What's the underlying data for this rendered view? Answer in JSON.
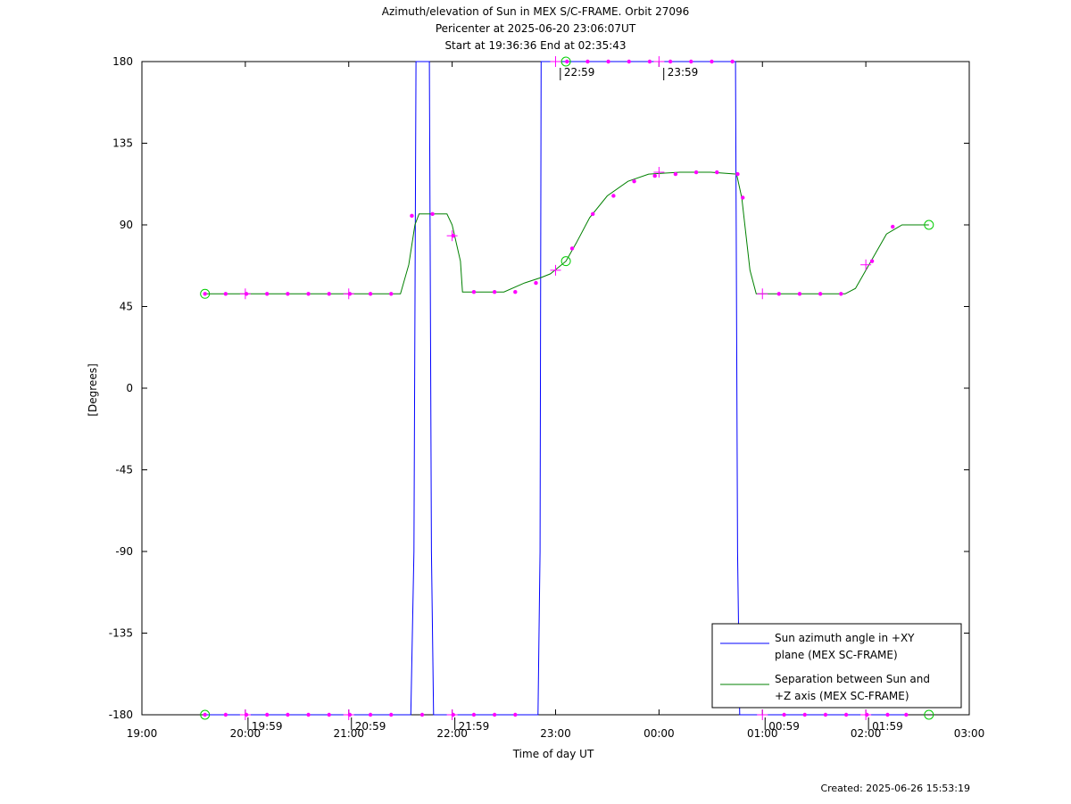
{
  "header": {
    "title": "Azimuth/elevation of Sun in MEX S/C-FRAME.  Orbit 27096",
    "subtitle1": "Pericenter at 2025-06-20 23:06:07UT",
    "subtitle2": "Start at 19:36:36 End at 02:35:43"
  },
  "footer": {
    "created": "Created: 2025-06-26 15:53:19"
  },
  "chart_data": {
    "type": "line",
    "title": "Azimuth/elevation of Sun in MEX S/C-FRAME.  Orbit 27096",
    "xlabel": "Time of day UT",
    "ylabel": "[Degrees]",
    "x_unit": "hours since 19:00 UT",
    "xlim": [
      0,
      8
    ],
    "ylim": [
      -180,
      180
    ],
    "x_ticks": [
      {
        "x": 0,
        "label": "19:00"
      },
      {
        "x": 1,
        "label": "20:00"
      },
      {
        "x": 2,
        "label": "21:00"
      },
      {
        "x": 3,
        "label": "22:00"
      },
      {
        "x": 4,
        "label": "23:00"
      },
      {
        "x": 5,
        "label": "00:00"
      },
      {
        "x": 6,
        "label": "01:00"
      },
      {
        "x": 7,
        "label": "02:00"
      },
      {
        "x": 8,
        "label": "03:00"
      }
    ],
    "y_ticks": [
      {
        "y": 180,
        "label": "180"
      },
      {
        "y": 135,
        "label": "135"
      },
      {
        "y": 90,
        "label": "90"
      },
      {
        "y": 45,
        "label": "45"
      },
      {
        "y": 0,
        "label": "0"
      },
      {
        "y": -45,
        "label": "-45"
      },
      {
        "y": -90,
        "label": "-90"
      },
      {
        "y": -135,
        "label": "-135"
      },
      {
        "y": -180,
        "label": "-180"
      }
    ],
    "grid": false,
    "legend_position": "bottom-right",
    "series": [
      {
        "name": "Sun azimuth angle in +XY plane (MEX SC-FRAME)",
        "legend_lines": [
          "Sun azimuth angle in +XY",
          "plane (MEX SC-FRAME)"
        ],
        "color": "#0000ff",
        "points": [
          [
            0.61,
            -180
          ],
          [
            2.6,
            -180
          ],
          [
            2.63,
            -90
          ],
          [
            2.65,
            180
          ],
          [
            2.78,
            180
          ],
          [
            2.8,
            -90
          ],
          [
            2.82,
            -180
          ],
          [
            3.83,
            -180
          ],
          [
            3.85,
            -90
          ],
          [
            3.86,
            180
          ],
          [
            5.74,
            180
          ],
          [
            5.76,
            -90
          ],
          [
            5.78,
            -180
          ],
          [
            7.39,
            -180
          ]
        ]
      },
      {
        "name": "Separation between Sun and +Z axis (MEX SC-FRAME)",
        "legend_lines": [
          "Separation between Sun and",
          "+Z axis (MEX SC-FRAME)"
        ],
        "color": "#008000",
        "points": [
          [
            0.61,
            52
          ],
          [
            2.5,
            52
          ],
          [
            2.58,
            68
          ],
          [
            2.64,
            90
          ],
          [
            2.68,
            96
          ],
          [
            2.95,
            96
          ],
          [
            3.0,
            90
          ],
          [
            3.08,
            70
          ],
          [
            3.1,
            53
          ],
          [
            3.5,
            53
          ],
          [
            3.7,
            58
          ],
          [
            3.86,
            61
          ],
          [
            3.95,
            63
          ],
          [
            4.1,
            70
          ],
          [
            4.2,
            80
          ],
          [
            4.33,
            94
          ],
          [
            4.5,
            106
          ],
          [
            4.7,
            114
          ],
          [
            4.9,
            118
          ],
          [
            5.2,
            119
          ],
          [
            5.5,
            119
          ],
          [
            5.75,
            118
          ],
          [
            5.8,
            105
          ],
          [
            5.88,
            65
          ],
          [
            5.94,
            52
          ],
          [
            6.8,
            52
          ],
          [
            6.9,
            55
          ],
          [
            7.05,
            70
          ],
          [
            7.2,
            85
          ],
          [
            7.35,
            90
          ],
          [
            7.61,
            90
          ]
        ]
      }
    ],
    "markers": {
      "color": "#ff00ff",
      "azimuth_dots": [
        [
          0.61,
          -180
        ],
        [
          0.81,
          -180
        ],
        [
          1.01,
          -180
        ],
        [
          1.21,
          -180
        ],
        [
          1.41,
          -180
        ],
        [
          1.61,
          -180
        ],
        [
          1.81,
          -180
        ],
        [
          2.01,
          -180
        ],
        [
          2.21,
          -180
        ],
        [
          2.41,
          -180
        ],
        [
          2.71,
          -180
        ],
        [
          3.01,
          -180
        ],
        [
          3.21,
          -180
        ],
        [
          3.41,
          -180
        ],
        [
          3.61,
          -180
        ],
        [
          4.11,
          180
        ],
        [
          4.31,
          180
        ],
        [
          4.51,
          180
        ],
        [
          4.71,
          180
        ],
        [
          4.91,
          180
        ],
        [
          5.11,
          180
        ],
        [
          5.31,
          180
        ],
        [
          5.51,
          180
        ],
        [
          5.71,
          180
        ],
        [
          6.21,
          -180
        ],
        [
          6.41,
          -180
        ],
        [
          6.61,
          -180
        ],
        [
          6.81,
          -180
        ],
        [
          7.01,
          -180
        ],
        [
          7.21,
          -180
        ],
        [
          7.39,
          -180
        ]
      ],
      "separation_dots": [
        [
          0.61,
          52
        ],
        [
          0.81,
          52
        ],
        [
          1.01,
          52
        ],
        [
          1.21,
          52
        ],
        [
          1.41,
          52
        ],
        [
          1.61,
          52
        ],
        [
          1.81,
          52
        ],
        [
          2.01,
          52
        ],
        [
          2.21,
          52
        ],
        [
          2.41,
          52
        ],
        [
          2.61,
          95
        ],
        [
          2.81,
          96
        ],
        [
          3.01,
          84
        ],
        [
          3.21,
          53
        ],
        [
          3.41,
          53
        ],
        [
          3.61,
          53
        ],
        [
          3.81,
          58
        ],
        [
          4.16,
          77
        ],
        [
          4.36,
          96
        ],
        [
          4.56,
          106
        ],
        [
          4.76,
          114
        ],
        [
          4.96,
          117
        ],
        [
          5.16,
          118
        ],
        [
          5.36,
          119
        ],
        [
          5.56,
          119
        ],
        [
          5.76,
          118
        ],
        [
          5.81,
          105
        ],
        [
          6.16,
          52
        ],
        [
          6.36,
          52
        ],
        [
          6.56,
          52
        ],
        [
          6.76,
          52
        ],
        [
          7.06,
          70
        ],
        [
          7.26,
          89
        ]
      ],
      "crosses": [
        [
          1.0,
          52
        ],
        [
          2.0,
          52
        ],
        [
          3.0,
          84
        ],
        [
          4.0,
          65
        ],
        [
          5.0,
          119
        ],
        [
          6.0,
          52
        ],
        [
          7.0,
          68
        ],
        [
          1.0,
          -180
        ],
        [
          2.0,
          -180
        ],
        [
          3.0,
          -180
        ],
        [
          4.0,
          180
        ],
        [
          5.0,
          180
        ],
        [
          6.0,
          -180
        ],
        [
          7.0,
          -180
        ]
      ]
    },
    "endpoint_circles": {
      "color": "#00cc00",
      "points": [
        [
          0.61,
          52
        ],
        [
          0.61,
          -180
        ],
        [
          4.1,
          70
        ],
        [
          4.1,
          180
        ],
        [
          7.61,
          90
        ],
        [
          7.61,
          -180
        ]
      ]
    },
    "time_annotations": [
      {
        "x": 1.0,
        "y": -180,
        "label": "19:59"
      },
      {
        "x": 2.0,
        "y": -180,
        "label": "20:59"
      },
      {
        "x": 3.0,
        "y": -180,
        "label": "21:59"
      },
      {
        "x": 4.02,
        "y": 180,
        "label": "22:59"
      },
      {
        "x": 5.02,
        "y": 180,
        "label": "23:59"
      },
      {
        "x": 6.0,
        "y": -180,
        "label": "00:59"
      },
      {
        "x": 7.0,
        "y": -180,
        "label": "01:59"
      }
    ]
  }
}
